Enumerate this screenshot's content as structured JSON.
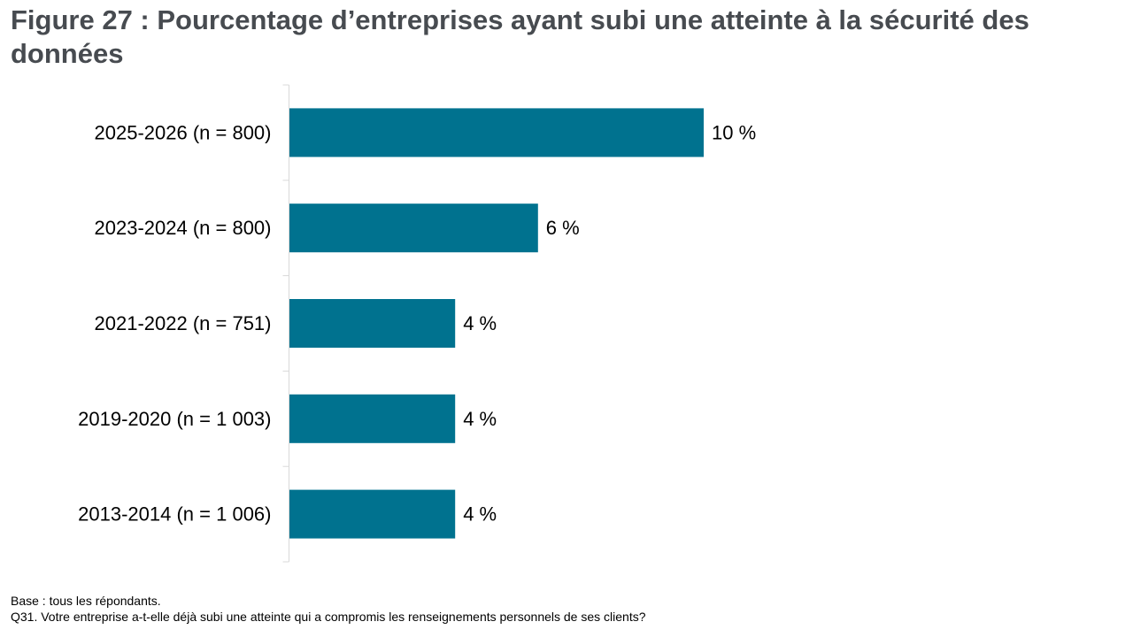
{
  "chart_data": {
    "type": "bar",
    "orientation": "horizontal",
    "title": "Figure 27 : Pourcentage d’entreprises ayant subi une atteinte à la sécurité des données",
    "categories": [
      "2025-2026 (n = 800)",
      "2023-2024 (n = 800)",
      "2021-2022 (n = 751)",
      "2019-2020 (n = 1 003)",
      "2013-2014 (n = 1 006)"
    ],
    "values": [
      10,
      6,
      4,
      4,
      4
    ],
    "value_labels": [
      "10 %",
      "6 %",
      "4 %",
      "4 %",
      "4 %"
    ],
    "unit": "%",
    "xlim": [
      0,
      100
    ],
    "grid": false,
    "legend": "none",
    "bar_color": "#00728f"
  },
  "notes": {
    "base": "Base : tous les répondants.",
    "question": "Q31. Votre entreprise a-t-elle déjà subi une atteinte qui a compromis les renseignements personnels de ses clients?"
  }
}
